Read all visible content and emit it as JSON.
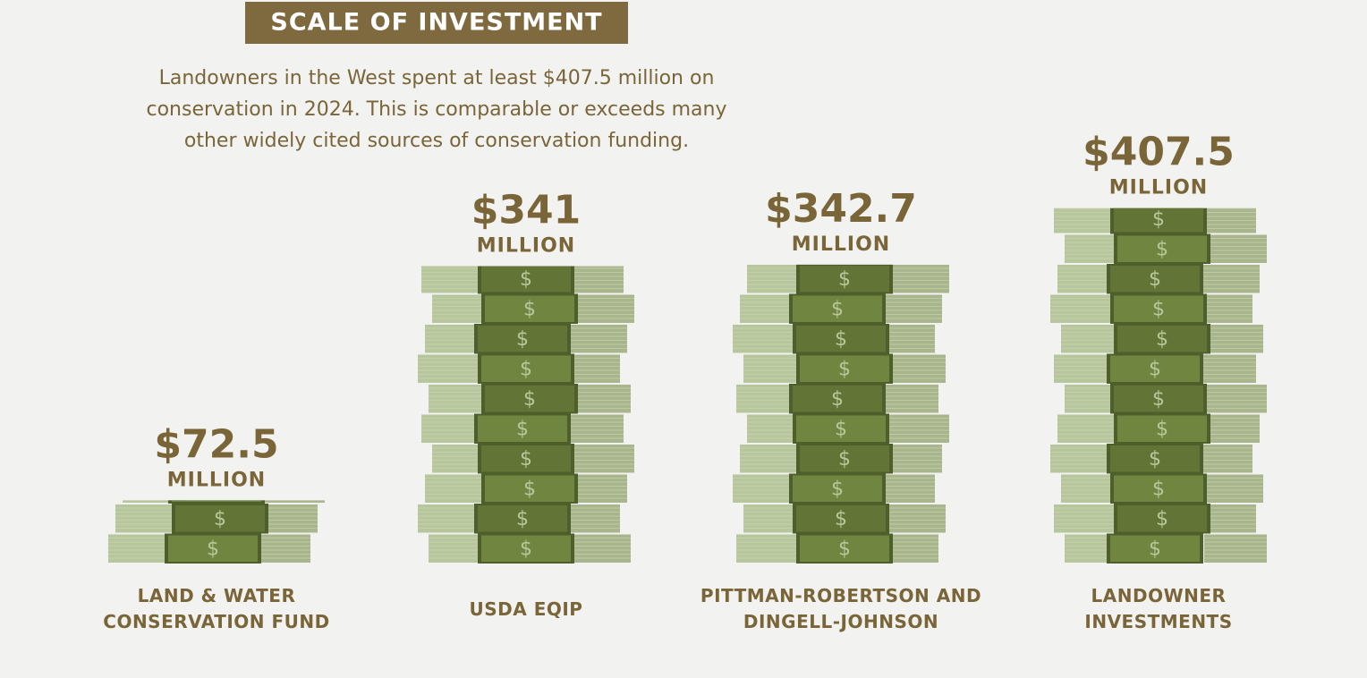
{
  "chart_data": {
    "type": "pictograph",
    "title": "SCALE OF INVESTMENT",
    "subtitle": [
      "Landowners in the West spent at least $407.5 million on",
      "conservation in 2024. This is comparable or exceeds many",
      "other widely cited sources of conservation funding."
    ],
    "categories": [
      "LAND & WATER CONSERVATION FUND",
      "USDA EQIP",
      "PITTMAN-ROBERTSON AND DINGELL-JOHNSON",
      "LANDOWNER INVESTMENTS"
    ],
    "values": [
      72.5,
      341,
      342.7,
      407.5
    ],
    "value_labels": [
      "$72.5",
      "$341",
      "$342.7",
      "$407.5"
    ],
    "unit_label": "MILLION",
    "color": "#6f8540"
  }
}
